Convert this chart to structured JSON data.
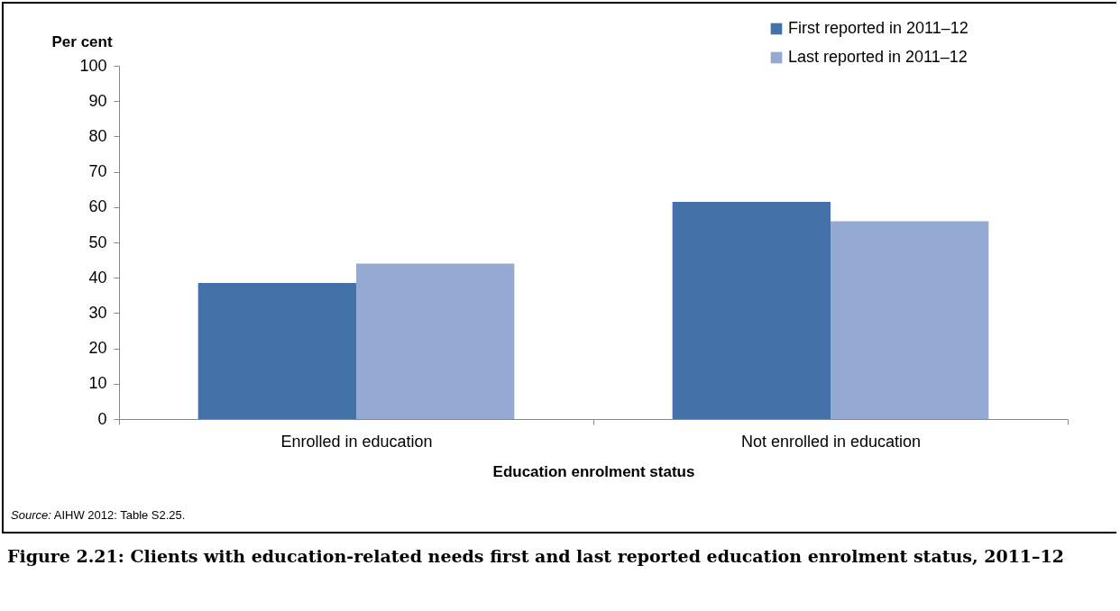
{
  "chart_data": {
    "type": "bar",
    "title": "Figure 2.21: Clients with education-related needs first and last reported education enrolment status, 2011–12",
    "xlabel": "Education enrolment status",
    "ylabel": "Per cent",
    "categories": [
      "Enrolled in education",
      "Not enrolled in education"
    ],
    "series": [
      {
        "name": "First reported in 2011–12",
        "color": "#4472a8",
        "values": [
          38.5,
          61.5
        ]
      },
      {
        "name": "Last reported in 2011–12",
        "color": "#95aad2",
        "values": [
          44,
          56
        ]
      }
    ],
    "ylim": [
      0,
      100
    ],
    "yticks": [
      0,
      10,
      20,
      30,
      40,
      50,
      60,
      70,
      80,
      90,
      100
    ],
    "grid": false,
    "legend": "top right",
    "annotations": [
      "Source: AIHW 2012: Table S2.25."
    ]
  }
}
